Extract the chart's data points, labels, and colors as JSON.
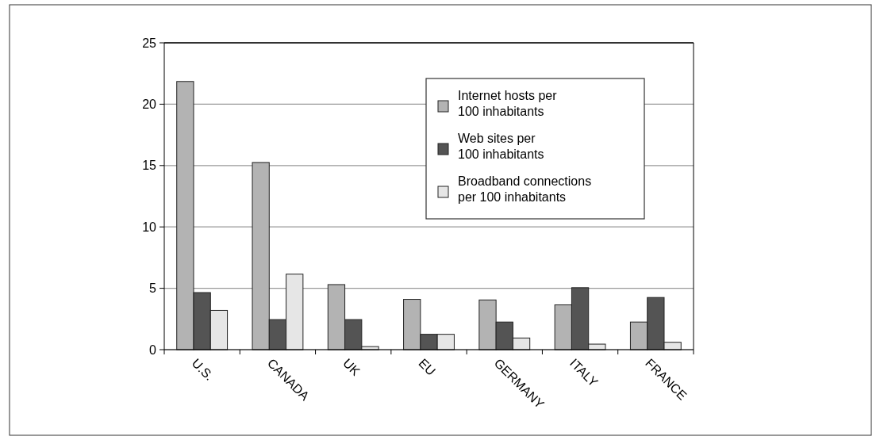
{
  "chart_data": {
    "type": "bar",
    "categories": [
      "U.S.",
      "CANADA",
      "UK",
      "EU",
      "GERMANY",
      "ITALY",
      "FRANCE"
    ],
    "series": [
      {
        "name": "Internet hosts per\n100 inhabitants",
        "color": "#b3b3b3",
        "values": [
          21.85,
          15.25,
          5.3,
          4.1,
          4.05,
          3.65,
          2.25
        ]
      },
      {
        "name": "Web sites per\n100 inhabitants",
        "color": "#545454",
        "values": [
          4.65,
          2.45,
          2.45,
          1.25,
          2.25,
          5.05,
          4.25
        ]
      },
      {
        "name": "Broadband connections\nper 100 inhabitants",
        "color": "#e6e6e6",
        "values": [
          3.2,
          6.15,
          0.25,
          1.25,
          0.95,
          0.45,
          0.6
        ]
      }
    ],
    "ylim": [
      0,
      25
    ],
    "yticks": [
      0,
      5,
      10,
      15,
      20,
      25
    ],
    "grid": "y",
    "legend": "top right"
  }
}
